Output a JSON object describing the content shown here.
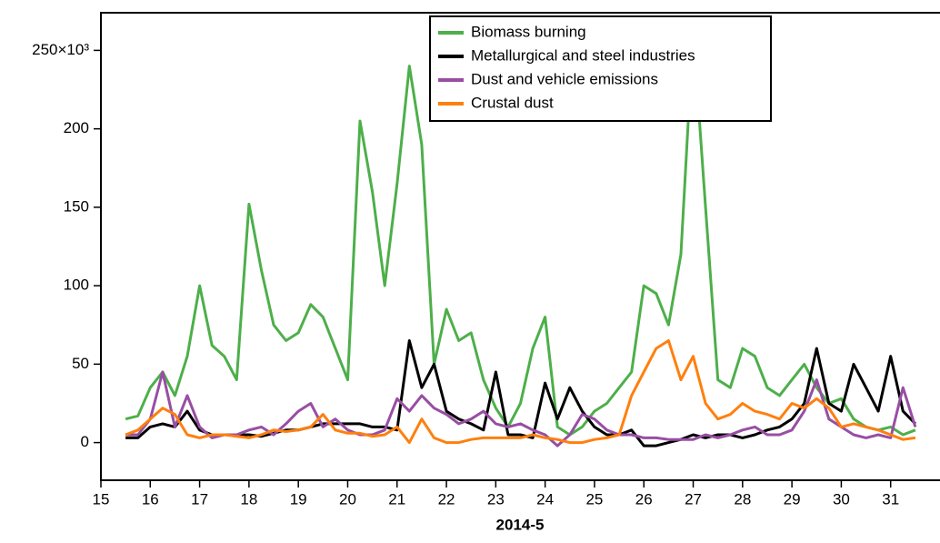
{
  "chart_data": {
    "type": "line",
    "x_label": "2014-5",
    "x": [
      15.5,
      15.75,
      16,
      16.25,
      16.5,
      16.75,
      17,
      17.25,
      17.5,
      17.75,
      18,
      18.25,
      18.5,
      18.75,
      19,
      19.25,
      19.5,
      19.75,
      20,
      20.25,
      20.5,
      20.75,
      21,
      21.25,
      21.5,
      21.75,
      22,
      22.25,
      22.5,
      22.75,
      23,
      23.25,
      23.5,
      23.75,
      24,
      24.25,
      24.5,
      24.75,
      25,
      25.25,
      25.5,
      25.75,
      26,
      26.25,
      26.5,
      26.75,
      27,
      27.25,
      27.5,
      27.75,
      28,
      28.25,
      28.5,
      28.75,
      29,
      29.25,
      29.5,
      29.75,
      30,
      30.25,
      30.5,
      30.75,
      31,
      31.25,
      31.5
    ],
    "series": [
      {
        "name": "Biomass burning",
        "color": "#4daf4a",
        "values": [
          15000,
          17000,
          35000,
          45000,
          30000,
          55000,
          100000,
          62000,
          55000,
          40000,
          152000,
          110000,
          75000,
          65000,
          70000,
          88000,
          80000,
          60000,
          40000,
          205000,
          160000,
          100000,
          165000,
          240000,
          190000,
          50000,
          85000,
          65000,
          70000,
          40000,
          22000,
          10000,
          25000,
          60000,
          80000,
          10000,
          5000,
          10000,
          20000,
          25000,
          35000,
          45000,
          100000,
          95000,
          75000,
          120000,
          262000,
          150000,
          40000,
          35000,
          60000,
          55000,
          35000,
          30000,
          40000,
          50000,
          35000,
          25000,
          28000,
          15000,
          10000,
          8000,
          10000,
          5000,
          8000
        ]
      },
      {
        "name": "Metallurgical and steel industries",
        "color": "#000000",
        "values": [
          3000,
          3000,
          10000,
          12000,
          10000,
          20000,
          8000,
          5000,
          5000,
          5000,
          5000,
          4000,
          6000,
          8000,
          8000,
          10000,
          12000,
          12000,
          12000,
          12000,
          10000,
          10000,
          8000,
          65000,
          35000,
          50000,
          20000,
          15000,
          12000,
          8000,
          45000,
          5000,
          5000,
          3000,
          38000,
          15000,
          35000,
          20000,
          10000,
          5000,
          5000,
          8000,
          -2000,
          -2000,
          0,
          2000,
          5000,
          3000,
          5000,
          5000,
          3000,
          5000,
          8000,
          10000,
          15000,
          25000,
          60000,
          25000,
          20000,
          50000,
          35000,
          20000,
          55000,
          20000,
          12000
        ]
      },
      {
        "name": "Dust and vehicle emissions",
        "color": "#984ea3",
        "values": [
          5000,
          5000,
          15000,
          45000,
          10000,
          30000,
          10000,
          3000,
          5000,
          5000,
          8000,
          10000,
          5000,
          12000,
          20000,
          25000,
          10000,
          15000,
          8000,
          5000,
          5000,
          8000,
          28000,
          20000,
          30000,
          22000,
          18000,
          12000,
          15000,
          20000,
          12000,
          10000,
          12000,
          8000,
          5000,
          -2000,
          5000,
          18000,
          15000,
          8000,
          5000,
          5000,
          3000,
          3000,
          2000,
          2000,
          2000,
          5000,
          3000,
          5000,
          8000,
          10000,
          5000,
          5000,
          8000,
          20000,
          40000,
          15000,
          10000,
          5000,
          3000,
          5000,
          3000,
          35000,
          10000
        ]
      },
      {
        "name": "Crustal dust",
        "color": "#ff7f0e",
        "values": [
          5000,
          8000,
          15000,
          22000,
          18000,
          5000,
          3000,
          5000,
          5000,
          4000,
          3000,
          5000,
          8000,
          7000,
          8000,
          10000,
          18000,
          8000,
          6000,
          6000,
          4000,
          5000,
          10000,
          0,
          15000,
          3000,
          0,
          0,
          2000,
          3000,
          3000,
          3000,
          3000,
          5000,
          3000,
          2000,
          0,
          0,
          2000,
          3000,
          5000,
          30000,
          45000,
          60000,
          65000,
          40000,
          55000,
          25000,
          15000,
          18000,
          25000,
          20000,
          18000,
          15000,
          25000,
          22000,
          28000,
          22000,
          10000,
          12000,
          10000,
          8000,
          5000,
          2000,
          3000
        ]
      }
    ],
    "xlim": [
      15,
      32
    ],
    "xticks": [
      15,
      16,
      17,
      18,
      19,
      20,
      21,
      22,
      23,
      24,
      25,
      26,
      27,
      28,
      29,
      30,
      31
    ],
    "ylim": [
      -24000,
      274000
    ],
    "yticks": [
      {
        "value": 0,
        "label": "0"
      },
      {
        "value": 50000,
        "label": "50"
      },
      {
        "value": 100000,
        "label": "100"
      },
      {
        "value": 150000,
        "label": "150"
      },
      {
        "value": 200000,
        "label": "200"
      },
      {
        "value": 250000,
        "label": "250×10³"
      }
    ]
  }
}
